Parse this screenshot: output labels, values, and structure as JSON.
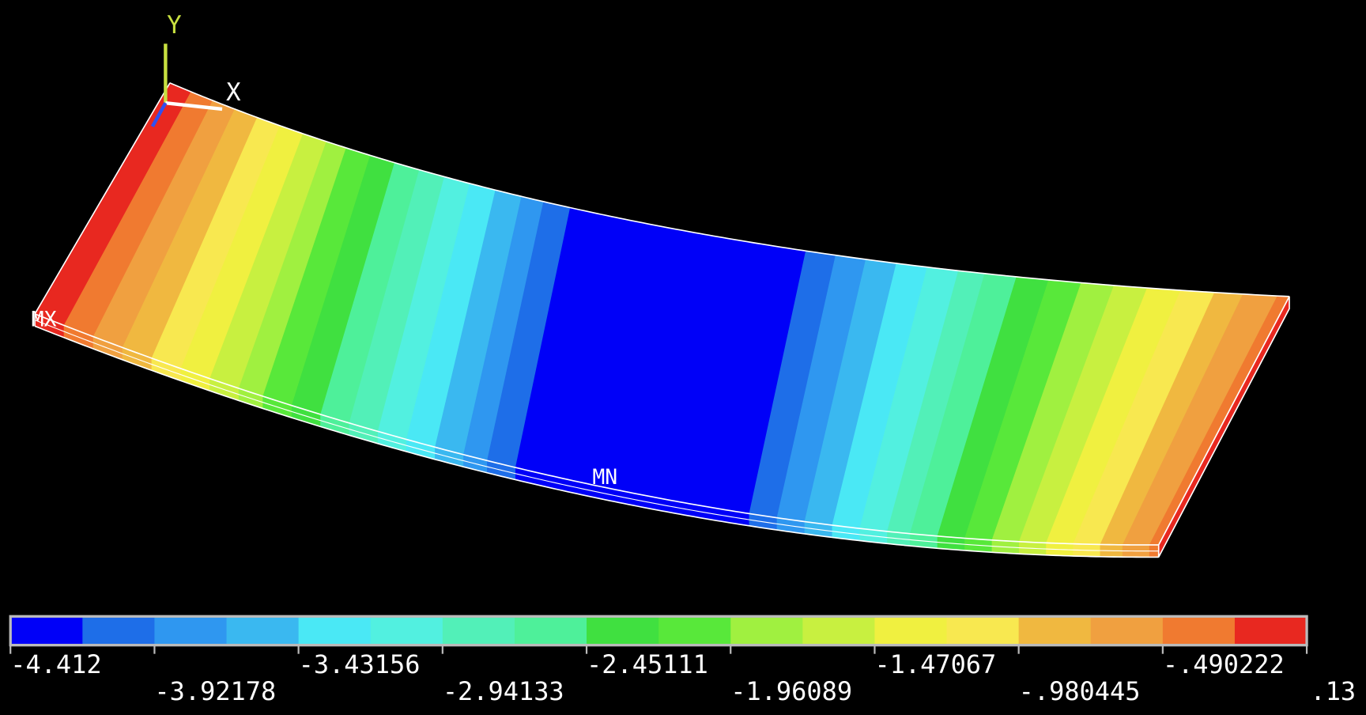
{
  "axes_triad": {
    "y_label": "Y",
    "x_label": "X"
  },
  "markers": {
    "max": "MX",
    "min": "MN"
  },
  "colorbar": {
    "colors": [
      "#0000f8",
      "#1e6ee8",
      "#2f97f0",
      "#3ab8f0",
      "#4ae8f5",
      "#52f0e0",
      "#52f0b8",
      "#4ef09a",
      "#40e040",
      "#58e83a",
      "#a0f040",
      "#c8f040",
      "#f0f040",
      "#f8e850",
      "#f0b840",
      "#f0a040",
      "#f07a30",
      "#e82820"
    ],
    "ticks": [
      -4.412,
      -3.92178,
      -3.43156,
      -2.94133,
      -2.45111,
      -1.96089,
      -1.47067,
      {
        "value": -0.980445,
        "label": "-.980445"
      },
      {
        "value": -0.490222,
        "label": "-.490222"
      },
      {
        "value": 0.13,
        "label": ".13"
      }
    ]
  }
}
